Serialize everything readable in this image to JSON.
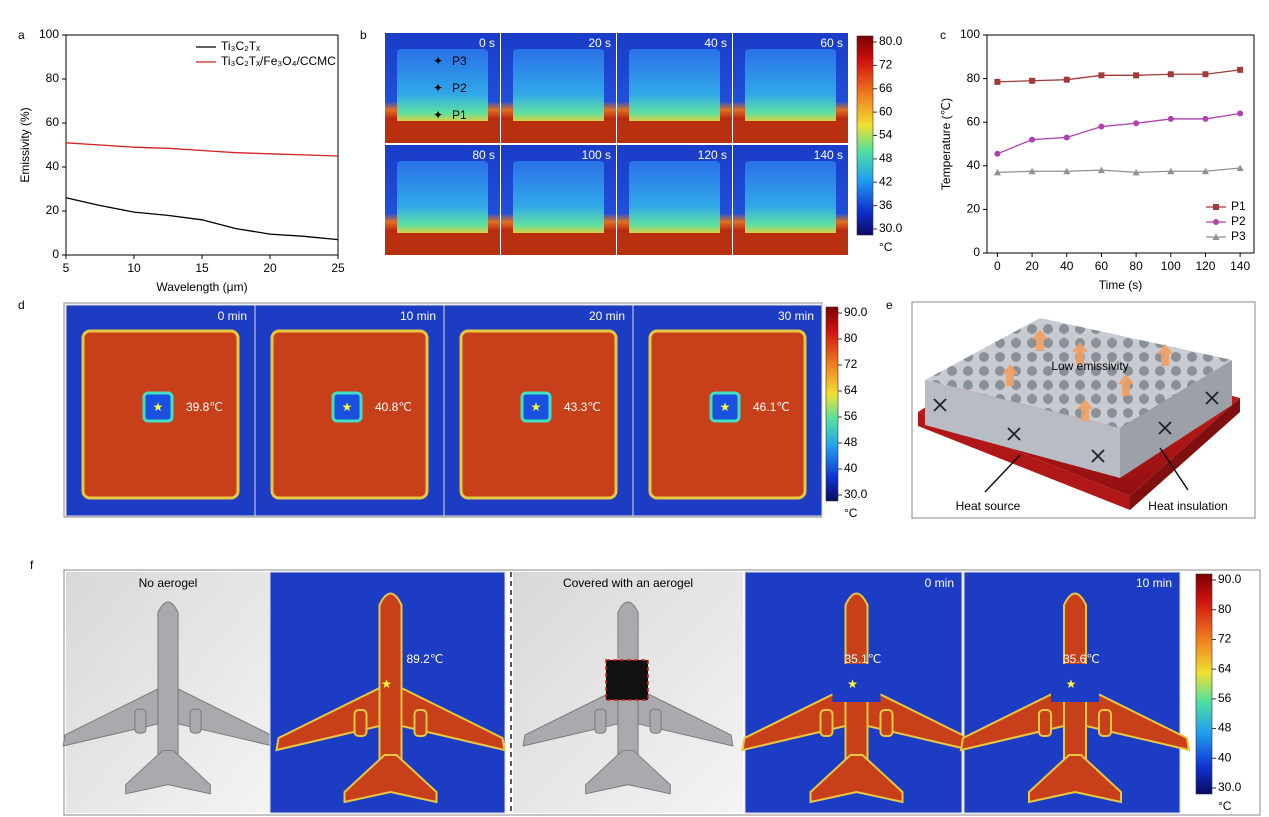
{
  "chart_data": [
    {
      "type": "line",
      "xlabel": "Wavelength (μm)",
      "ylabel": "Emissivity (%)",
      "x": [
        5,
        7.5,
        10,
        12.5,
        15,
        17.5,
        20,
        22.5,
        25
      ],
      "series": [
        {
          "name": "Ti₃C₂Tₓ",
          "color": "#000000",
          "values": [
            26,
            22.5,
            19.5,
            18,
            16,
            12,
            9.5,
            8.5,
            7
          ]
        },
        {
          "name": "Ti₃C₂Tₓ/Fe₃O₄/CCMC",
          "color": "#d42020",
          "values": [
            51,
            50,
            49,
            48.5,
            47.5,
            46.5,
            46,
            45.5,
            45
          ]
        }
      ],
      "xlim": [
        5,
        25
      ],
      "ylim": [
        0,
        100
      ],
      "xticks": [
        5,
        10,
        15,
        20,
        25
      ],
      "yticks": [
        0,
        20,
        40,
        60,
        80,
        100
      ],
      "legend": "upper right"
    },
    {
      "type": "line",
      "xlabel": "Time (s)",
      "ylabel": "Temperature (℃)",
      "x": [
        0,
        20,
        40,
        60,
        80,
        100,
        120,
        140
      ],
      "series": [
        {
          "name": "P1",
          "color": "#a33a3a",
          "marker": "square",
          "values": [
            78.5,
            79,
            79.5,
            81.5,
            81.5,
            82,
            82,
            84
          ]
        },
        {
          "name": "P2",
          "color": "#b040b0",
          "marker": "circle",
          "values": [
            45.5,
            52,
            53,
            58,
            59.5,
            61.5,
            61.5,
            64
          ]
        },
        {
          "name": "P3",
          "color": "#909090",
          "marker": "triangle",
          "values": [
            37,
            37.5,
            37.5,
            38,
            37,
            37.5,
            37.5,
            39
          ]
        }
      ],
      "xlim": [
        -6,
        148
      ],
      "ylim": [
        0,
        100
      ],
      "xticks": [
        0,
        20,
        40,
        60,
        80,
        100,
        120,
        140
      ],
      "yticks": [
        0,
        20,
        40,
        60,
        80,
        100
      ],
      "legend": "lower right"
    }
  ],
  "panel_labels": [
    "a",
    "b",
    "c",
    "d",
    "e",
    "f"
  ],
  "panel_b": {
    "times": [
      "0 s",
      "20 s",
      "40 s",
      "60 s",
      "80 s",
      "100 s",
      "120 s",
      "140 s"
    ],
    "points": [
      "P3",
      "P2",
      "P1"
    ],
    "colorbar": {
      "ticks": [
        "80.0",
        "72",
        "66",
        "60",
        "54",
        "48",
        "42",
        "36",
        "30.0"
      ],
      "unit": "°C"
    }
  },
  "panel_d": {
    "times": [
      "0 min",
      "10 min",
      "20 min",
      "30 min"
    ],
    "temperatures": [
      "39.8℃",
      "40.8℃",
      "43.3℃",
      "46.1℃"
    ],
    "colorbar": {
      "ticks": [
        "90.0",
        "80",
        "72",
        "64",
        "56",
        "48",
        "40",
        "30.0"
      ],
      "unit": "°C"
    }
  },
  "panel_e": {
    "texts": [
      "Low emissivity",
      "Heat source",
      "Heat insulation"
    ]
  },
  "panel_f": {
    "photo_labels": [
      "No aerogel",
      "Covered with an aerogel"
    ],
    "temperatures": [
      "89.2℃",
      "35.1℃",
      "35.6℃"
    ],
    "times": [
      "0 min",
      "10 min"
    ],
    "colorbar": {
      "ticks": [
        "90.0",
        "80",
        "72",
        "64",
        "56",
        "48",
        "40",
        "30.0"
      ],
      "unit": "°C"
    }
  }
}
